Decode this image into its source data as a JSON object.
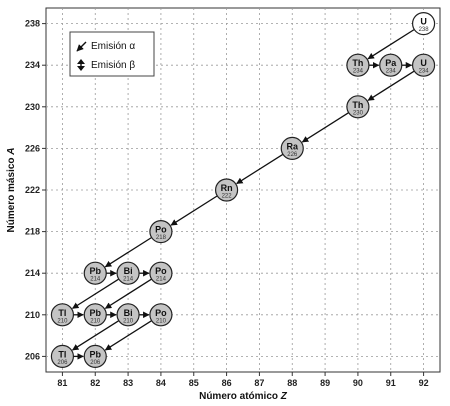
{
  "chart_data": {
    "type": "scatter",
    "title": "",
    "xlabel_main": "Número atómico",
    "xlabel_var": "Z",
    "ylabel_main": "Número másico",
    "ylabel_var": "A",
    "xlim": [
      80.5,
      92.5
    ],
    "ylim": [
      204.5,
      239.5
    ],
    "xticks": [
      81,
      82,
      83,
      84,
      85,
      86,
      87,
      88,
      89,
      90,
      91,
      92
    ],
    "yticks": [
      206,
      210,
      214,
      218,
      222,
      226,
      230,
      234,
      238
    ],
    "grid": "dashed",
    "legend_position": "top-left",
    "legend": [
      {
        "key": "alpha",
        "label": "Emisión α"
      },
      {
        "key": "beta",
        "label": "Emisión β"
      }
    ],
    "nuclides": [
      {
        "id": "U238",
        "symbol": "U",
        "mass": "238",
        "z": 92,
        "a": 238,
        "fill": "#ffffff"
      },
      {
        "id": "Th234",
        "symbol": "Th",
        "mass": "234",
        "z": 90,
        "a": 234,
        "fill": "#c4c4c4"
      },
      {
        "id": "Pa234",
        "symbol": "Pa",
        "mass": "234",
        "z": 91,
        "a": 234,
        "fill": "#c4c4c4"
      },
      {
        "id": "U234",
        "symbol": "U",
        "mass": "234",
        "z": 92,
        "a": 234,
        "fill": "#c4c4c4"
      },
      {
        "id": "Th230",
        "symbol": "Th",
        "mass": "230",
        "z": 90,
        "a": 230,
        "fill": "#c4c4c4"
      },
      {
        "id": "Ra226",
        "symbol": "Ra",
        "mass": "226",
        "z": 88,
        "a": 226,
        "fill": "#c4c4c4"
      },
      {
        "id": "Rn222",
        "symbol": "Rn",
        "mass": "222",
        "z": 86,
        "a": 222,
        "fill": "#c4c4c4"
      },
      {
        "id": "Po218",
        "symbol": "Po",
        "mass": "218",
        "z": 84,
        "a": 218,
        "fill": "#c4c4c4"
      },
      {
        "id": "Pb214",
        "symbol": "Pb",
        "mass": "214",
        "z": 82,
        "a": 214,
        "fill": "#c4c4c4"
      },
      {
        "id": "Bi214",
        "symbol": "Bi",
        "mass": "214",
        "z": 83,
        "a": 214,
        "fill": "#c4c4c4"
      },
      {
        "id": "Po214",
        "symbol": "Po",
        "mass": "214",
        "z": 84,
        "a": 214,
        "fill": "#c4c4c4"
      },
      {
        "id": "Tl210",
        "symbol": "Tl",
        "mass": "210",
        "z": 81,
        "a": 210,
        "fill": "#c4c4c4"
      },
      {
        "id": "Pb210",
        "symbol": "Pb",
        "mass": "210",
        "z": 82,
        "a": 210,
        "fill": "#c4c4c4"
      },
      {
        "id": "Bi210",
        "symbol": "Bi",
        "mass": "210",
        "z": 83,
        "a": 210,
        "fill": "#c4c4c4"
      },
      {
        "id": "Po210",
        "symbol": "Po",
        "mass": "210",
        "z": 84,
        "a": 210,
        "fill": "#c4c4c4"
      },
      {
        "id": "Tl206",
        "symbol": "Tl",
        "mass": "206",
        "z": 81,
        "a": 206,
        "fill": "#c4c4c4"
      },
      {
        "id": "Pb206",
        "symbol": "Pb",
        "mass": "206",
        "z": 82,
        "a": 206,
        "fill": "#c4c4c4"
      }
    ],
    "decays": [
      {
        "from": "U238",
        "to": "Th234",
        "type": "alpha"
      },
      {
        "from": "Th234",
        "to": "Pa234",
        "type": "beta"
      },
      {
        "from": "Pa234",
        "to": "U234",
        "type": "beta"
      },
      {
        "from": "U234",
        "to": "Th230",
        "type": "alpha"
      },
      {
        "from": "Th230",
        "to": "Ra226",
        "type": "alpha"
      },
      {
        "from": "Ra226",
        "to": "Rn222",
        "type": "alpha"
      },
      {
        "from": "Rn222",
        "to": "Po218",
        "type": "alpha"
      },
      {
        "from": "Po218",
        "to": "Pb214",
        "type": "alpha"
      },
      {
        "from": "Pb214",
        "to": "Bi214",
        "type": "beta"
      },
      {
        "from": "Bi214",
        "to": "Po214",
        "type": "beta"
      },
      {
        "from": "Po214",
        "to": "Pb210",
        "type": "alpha"
      },
      {
        "from": "Bi214",
        "to": "Tl210",
        "type": "alpha"
      },
      {
        "from": "Tl210",
        "to": "Pb210",
        "type": "beta"
      },
      {
        "from": "Pb210",
        "to": "Bi210",
        "type": "beta"
      },
      {
        "from": "Bi210",
        "to": "Po210",
        "type": "beta"
      },
      {
        "from": "Bi210",
        "to": "Tl206",
        "type": "alpha"
      },
      {
        "from": "Po210",
        "to": "Pb206",
        "type": "alpha"
      },
      {
        "from": "Tl206",
        "to": "Pb206",
        "type": "beta"
      }
    ]
  }
}
